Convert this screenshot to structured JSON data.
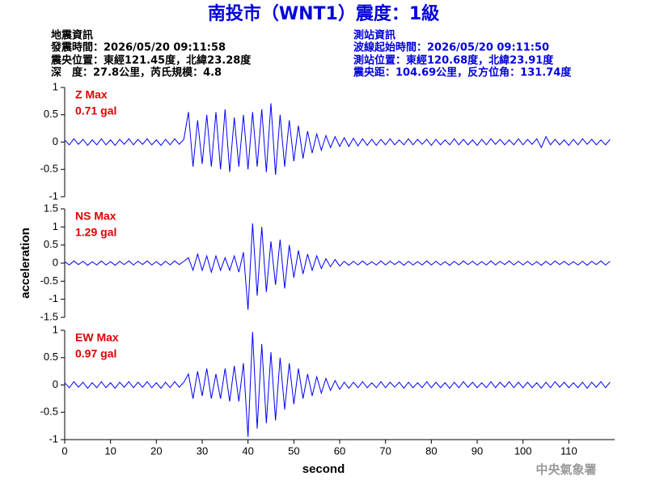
{
  "title": "南投市（WNT1）震度：1級",
  "quake_info": [
    "地震資訊",
    "發震時間：2026/05/20 09:11:58",
    "震央位置：東經121.45度，北緯23.28度",
    "深　度：27.8公里，芮氏規模：4.8"
  ],
  "station_info": [
    "測站資訊",
    "波線起始時間：2026/05/20 09:11:50",
    "測站位置：東經120.68度，北緯23.91度",
    "震央距：104.69公里，反方位角：131.74度"
  ],
  "credit": "中央氣象署",
  "chart_data": [
    {
      "type": "line",
      "label": "Z Max",
      "max_label": "0.71 gal",
      "color": "#0000ff",
      "xlim": [
        0,
        120
      ],
      "ylim": [
        -1,
        1
      ],
      "yticks": [
        -1,
        -0.5,
        0,
        0.5,
        1
      ],
      "x": [
        0,
        1,
        2,
        3,
        4,
        5,
        6,
        7,
        8,
        9,
        10,
        11,
        12,
        13,
        14,
        15,
        16,
        17,
        18,
        19,
        20,
        21,
        22,
        23,
        24,
        25,
        26,
        27,
        28,
        29,
        30,
        31,
        32,
        33,
        34,
        35,
        36,
        37,
        38,
        39,
        40,
        41,
        42,
        43,
        44,
        45,
        46,
        47,
        48,
        49,
        50,
        51,
        52,
        53,
        54,
        55,
        56,
        57,
        58,
        59,
        60,
        61,
        62,
        63,
        64,
        65,
        66,
        67,
        68,
        69,
        70,
        71,
        72,
        73,
        74,
        75,
        76,
        77,
        78,
        79,
        80,
        81,
        82,
        83,
        84,
        85,
        86,
        87,
        88,
        89,
        90,
        91,
        92,
        93,
        94,
        95,
        96,
        97,
        98,
        99,
        100,
        101,
        102,
        103,
        104,
        105,
        106,
        107,
        108,
        109,
        110,
        111,
        112,
        113,
        114,
        115,
        116,
        117,
        118,
        119
      ],
      "values": [
        0.04,
        -0.05,
        0.06,
        -0.04,
        0.05,
        -0.06,
        0.04,
        -0.05,
        0.06,
        -0.05,
        0.04,
        -0.06,
        0.05,
        -0.04,
        0.06,
        -0.05,
        0.05,
        -0.04,
        0.06,
        -0.05,
        0.04,
        -0.06,
        0.05,
        -0.05,
        0.06,
        -0.04,
        0.05,
        0.55,
        -0.45,
        0.4,
        -0.4,
        0.5,
        -0.45,
        0.55,
        -0.5,
        0.6,
        -0.55,
        0.45,
        -0.45,
        0.5,
        -0.5,
        0.55,
        -0.45,
        0.6,
        -0.55,
        0.71,
        -0.6,
        0.5,
        -0.45,
        0.4,
        -0.35,
        0.3,
        -0.3,
        0.2,
        -0.2,
        0.15,
        -0.15,
        0.12,
        -0.1,
        0.1,
        -0.08,
        0.08,
        -0.08,
        0.07,
        -0.07,
        0.06,
        -0.06,
        0.05,
        -0.06,
        0.05,
        -0.05,
        0.06,
        -0.05,
        0.04,
        -0.05,
        0.06,
        -0.05,
        0.05,
        -0.04,
        0.05,
        -0.06,
        0.05,
        -0.05,
        0.04,
        -0.05,
        0.06,
        -0.05,
        0.05,
        -0.05,
        0.04,
        -0.06,
        0.05,
        -0.05,
        0.06,
        -0.04,
        0.05,
        -0.05,
        0.04,
        -0.05,
        0.06,
        -0.05,
        0.05,
        -0.04,
        0.06,
        -0.1,
        0.1,
        -0.05,
        0.05,
        -0.05,
        0.04,
        -0.06,
        0.05,
        -0.05,
        0.06,
        -0.04,
        0.05,
        -0.05,
        0.04,
        -0.05,
        0.05
      ]
    },
    {
      "type": "line",
      "label": "NS Max",
      "max_label": "1.29 gal",
      "color": "#0000ff",
      "y_label": "acceleration",
      "xlim": [
        0,
        120
      ],
      "ylim": [
        -1.5,
        1.5
      ],
      "yticks": [
        -1.5,
        -1,
        -0.5,
        0,
        0.5,
        1,
        1.5
      ],
      "x": [
        0,
        1,
        2,
        3,
        4,
        5,
        6,
        7,
        8,
        9,
        10,
        11,
        12,
        13,
        14,
        15,
        16,
        17,
        18,
        19,
        20,
        21,
        22,
        23,
        24,
        25,
        26,
        27,
        28,
        29,
        30,
        31,
        32,
        33,
        34,
        35,
        36,
        37,
        38,
        39,
        40,
        41,
        42,
        43,
        44,
        45,
        46,
        47,
        48,
        49,
        50,
        51,
        52,
        53,
        54,
        55,
        56,
        57,
        58,
        59,
        60,
        61,
        62,
        63,
        64,
        65,
        66,
        67,
        68,
        69,
        70,
        71,
        72,
        73,
        74,
        75,
        76,
        77,
        78,
        79,
        80,
        81,
        82,
        83,
        84,
        85,
        86,
        87,
        88,
        89,
        90,
        91,
        92,
        93,
        94,
        95,
        96,
        97,
        98,
        99,
        100,
        101,
        102,
        103,
        104,
        105,
        106,
        107,
        108,
        109,
        110,
        111,
        112,
        113,
        114,
        115,
        116,
        117,
        118,
        119
      ],
      "values": [
        0.04,
        -0.05,
        0.06,
        -0.04,
        0.05,
        -0.06,
        0.04,
        -0.05,
        0.06,
        -0.05,
        0.04,
        -0.06,
        0.05,
        -0.04,
        0.06,
        -0.05,
        0.05,
        -0.04,
        0.06,
        -0.05,
        0.04,
        -0.06,
        0.05,
        -0.05,
        0.06,
        -0.04,
        0.05,
        0.15,
        -0.2,
        0.25,
        -0.2,
        0.2,
        -0.25,
        0.2,
        -0.2,
        0.15,
        -0.2,
        0.2,
        -0.25,
        0.3,
        -1.29,
        1.1,
        -0.9,
        1.0,
        -0.8,
        0.6,
        -0.6,
        0.65,
        -0.7,
        0.5,
        -0.4,
        0.35,
        -0.3,
        0.25,
        -0.2,
        0.2,
        -0.15,
        0.12,
        -0.1,
        0.1,
        -0.08,
        0.05,
        -0.06,
        0.05,
        -0.05,
        0.06,
        -0.05,
        0.04,
        -0.05,
        0.06,
        -0.05,
        0.05,
        -0.04,
        0.05,
        -0.06,
        0.05,
        -0.05,
        0.04,
        -0.05,
        0.06,
        -0.05,
        0.05,
        -0.05,
        0.04,
        -0.06,
        0.05,
        -0.05,
        0.06,
        -0.04,
        0.05,
        -0.05,
        0.04,
        -0.05,
        0.06,
        -0.05,
        0.05,
        -0.04,
        0.06,
        -0.05,
        0.05,
        -0.05,
        0.05,
        -0.05,
        0.04,
        -0.06,
        0.05,
        -0.05,
        0.06,
        -0.04,
        0.05,
        -0.05,
        0.04,
        -0.05,
        0.05,
        -0.06,
        0.05,
        -0.04,
        0.06,
        -0.05,
        0.05
      ]
    },
    {
      "type": "line",
      "label": "EW Max",
      "max_label": "0.97 gal",
      "color": "#0000ff",
      "x_label": "second",
      "xlim": [
        0,
        120
      ],
      "xticks": [
        0,
        10,
        20,
        30,
        40,
        50,
        60,
        70,
        80,
        90,
        100,
        110
      ],
      "ylim": [
        -1,
        1
      ],
      "yticks": [
        -1,
        -0.5,
        0,
        0.5,
        1
      ],
      "x": [
        0,
        1,
        2,
        3,
        4,
        5,
        6,
        7,
        8,
        9,
        10,
        11,
        12,
        13,
        14,
        15,
        16,
        17,
        18,
        19,
        20,
        21,
        22,
        23,
        24,
        25,
        26,
        27,
        28,
        29,
        30,
        31,
        32,
        33,
        34,
        35,
        36,
        37,
        38,
        39,
        40,
        41,
        42,
        43,
        44,
        45,
        46,
        47,
        48,
        49,
        50,
        51,
        52,
        53,
        54,
        55,
        56,
        57,
        58,
        59,
        60,
        61,
        62,
        63,
        64,
        65,
        66,
        67,
        68,
        69,
        70,
        71,
        72,
        73,
        74,
        75,
        76,
        77,
        78,
        79,
        80,
        81,
        82,
        83,
        84,
        85,
        86,
        87,
        88,
        89,
        90,
        91,
        92,
        93,
        94,
        95,
        96,
        97,
        98,
        99,
        100,
        101,
        102,
        103,
        104,
        105,
        106,
        107,
        108,
        109,
        110,
        111,
        112,
        113,
        114,
        115,
        116,
        117,
        118,
        119
      ],
      "values": [
        0.04,
        -0.05,
        0.06,
        -0.04,
        0.05,
        -0.06,
        0.04,
        -0.05,
        0.06,
        -0.05,
        0.04,
        -0.06,
        0.05,
        -0.04,
        0.06,
        -0.05,
        0.05,
        -0.04,
        0.06,
        -0.05,
        0.04,
        -0.06,
        0.05,
        -0.05,
        0.06,
        -0.04,
        0.05,
        0.2,
        -0.25,
        0.25,
        -0.2,
        0.3,
        -0.25,
        0.2,
        -0.25,
        0.3,
        -0.3,
        0.35,
        -0.3,
        0.4,
        -0.95,
        0.97,
        -0.8,
        0.75,
        -0.7,
        0.6,
        -0.65,
        0.5,
        -0.45,
        0.4,
        -0.35,
        0.3,
        -0.25,
        0.2,
        -0.2,
        0.15,
        -0.15,
        0.12,
        -0.1,
        0.08,
        -0.08,
        0.05,
        -0.06,
        0.05,
        -0.05,
        0.06,
        -0.05,
        0.04,
        -0.05,
        0.06,
        -0.05,
        0.05,
        -0.04,
        0.05,
        -0.06,
        0.05,
        -0.05,
        0.04,
        -0.05,
        0.06,
        -0.05,
        0.05,
        -0.05,
        0.04,
        -0.06,
        0.05,
        -0.05,
        0.06,
        -0.04,
        0.05,
        -0.05,
        0.04,
        -0.05,
        0.06,
        -0.05,
        0.05,
        -0.04,
        0.06,
        -0.05,
        0.05,
        -0.05,
        0.05,
        -0.05,
        0.04,
        -0.06,
        0.05,
        -0.05,
        0.06,
        -0.04,
        0.05,
        -0.05,
        0.04,
        -0.05,
        0.05,
        -0.06,
        0.05,
        -0.04,
        0.06,
        -0.05,
        0.05
      ]
    }
  ]
}
